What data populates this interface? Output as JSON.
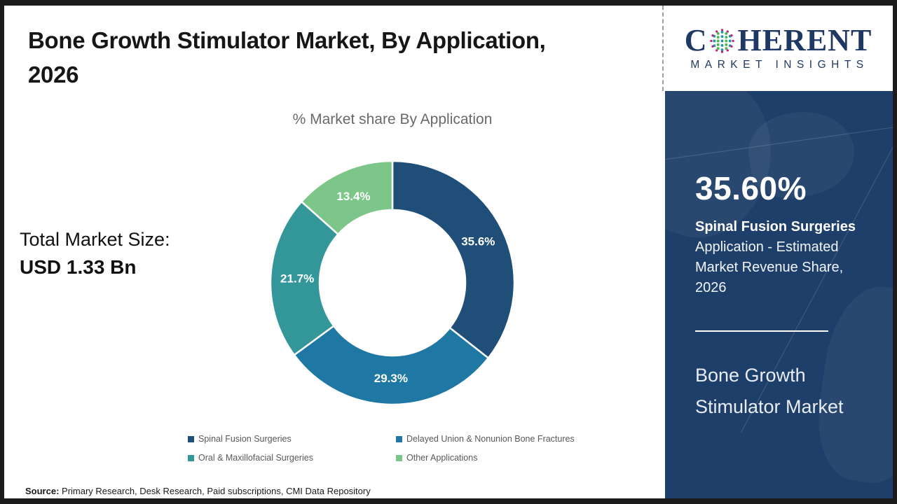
{
  "header": {
    "title_line1": "Bone Growth Stimulator Market, By Application,",
    "title_line2": "2026",
    "subtitle": "% Market share By Application"
  },
  "market_size": {
    "label": "Total Market Size:",
    "value": "USD 1.33 Bn"
  },
  "chart_data": {
    "type": "pie",
    "donut": true,
    "title": "% Market share By Application",
    "categories": [
      "Spinal Fusion Surgeries",
      "Delayed Union & Nonunion Bone Fractures",
      "Oral & Maxillofacial Surgeries",
      "Other Applications"
    ],
    "values": [
      35.6,
      29.3,
      21.7,
      13.4
    ],
    "labels": [
      "35.6%",
      "29.3%",
      "21.7%",
      "13.4%"
    ],
    "colors": [
      "#1F4E79",
      "#1F78A4",
      "#339799",
      "#7BC688"
    ],
    "start_angle_deg": 0,
    "direction": "clockwise",
    "inner_radius_ratio": 0.6,
    "legend_position": "bottom"
  },
  "sidebar": {
    "logo": {
      "brand_c": "C",
      "brand_rest": "HERENT",
      "tagline": "MARKET INSIGHTS",
      "navy": "#1F3864",
      "globe_colors": {
        "teal": "#1C9AA8",
        "green": "#49B749",
        "magenta": "#C0227C"
      }
    },
    "panel_color": "#1E3F69",
    "highlight": {
      "value": "35.60%",
      "label_bold": "Spinal Fusion Surgeries",
      "label_rest": "Application - Estimated Market Revenue Share, 2026"
    },
    "report_title": "Bone Growth Stimulator Market"
  },
  "footer": {
    "source_label": "Source:",
    "source_text": " Primary Research, Desk Research, Paid subscriptions, CMI Data Repository"
  }
}
